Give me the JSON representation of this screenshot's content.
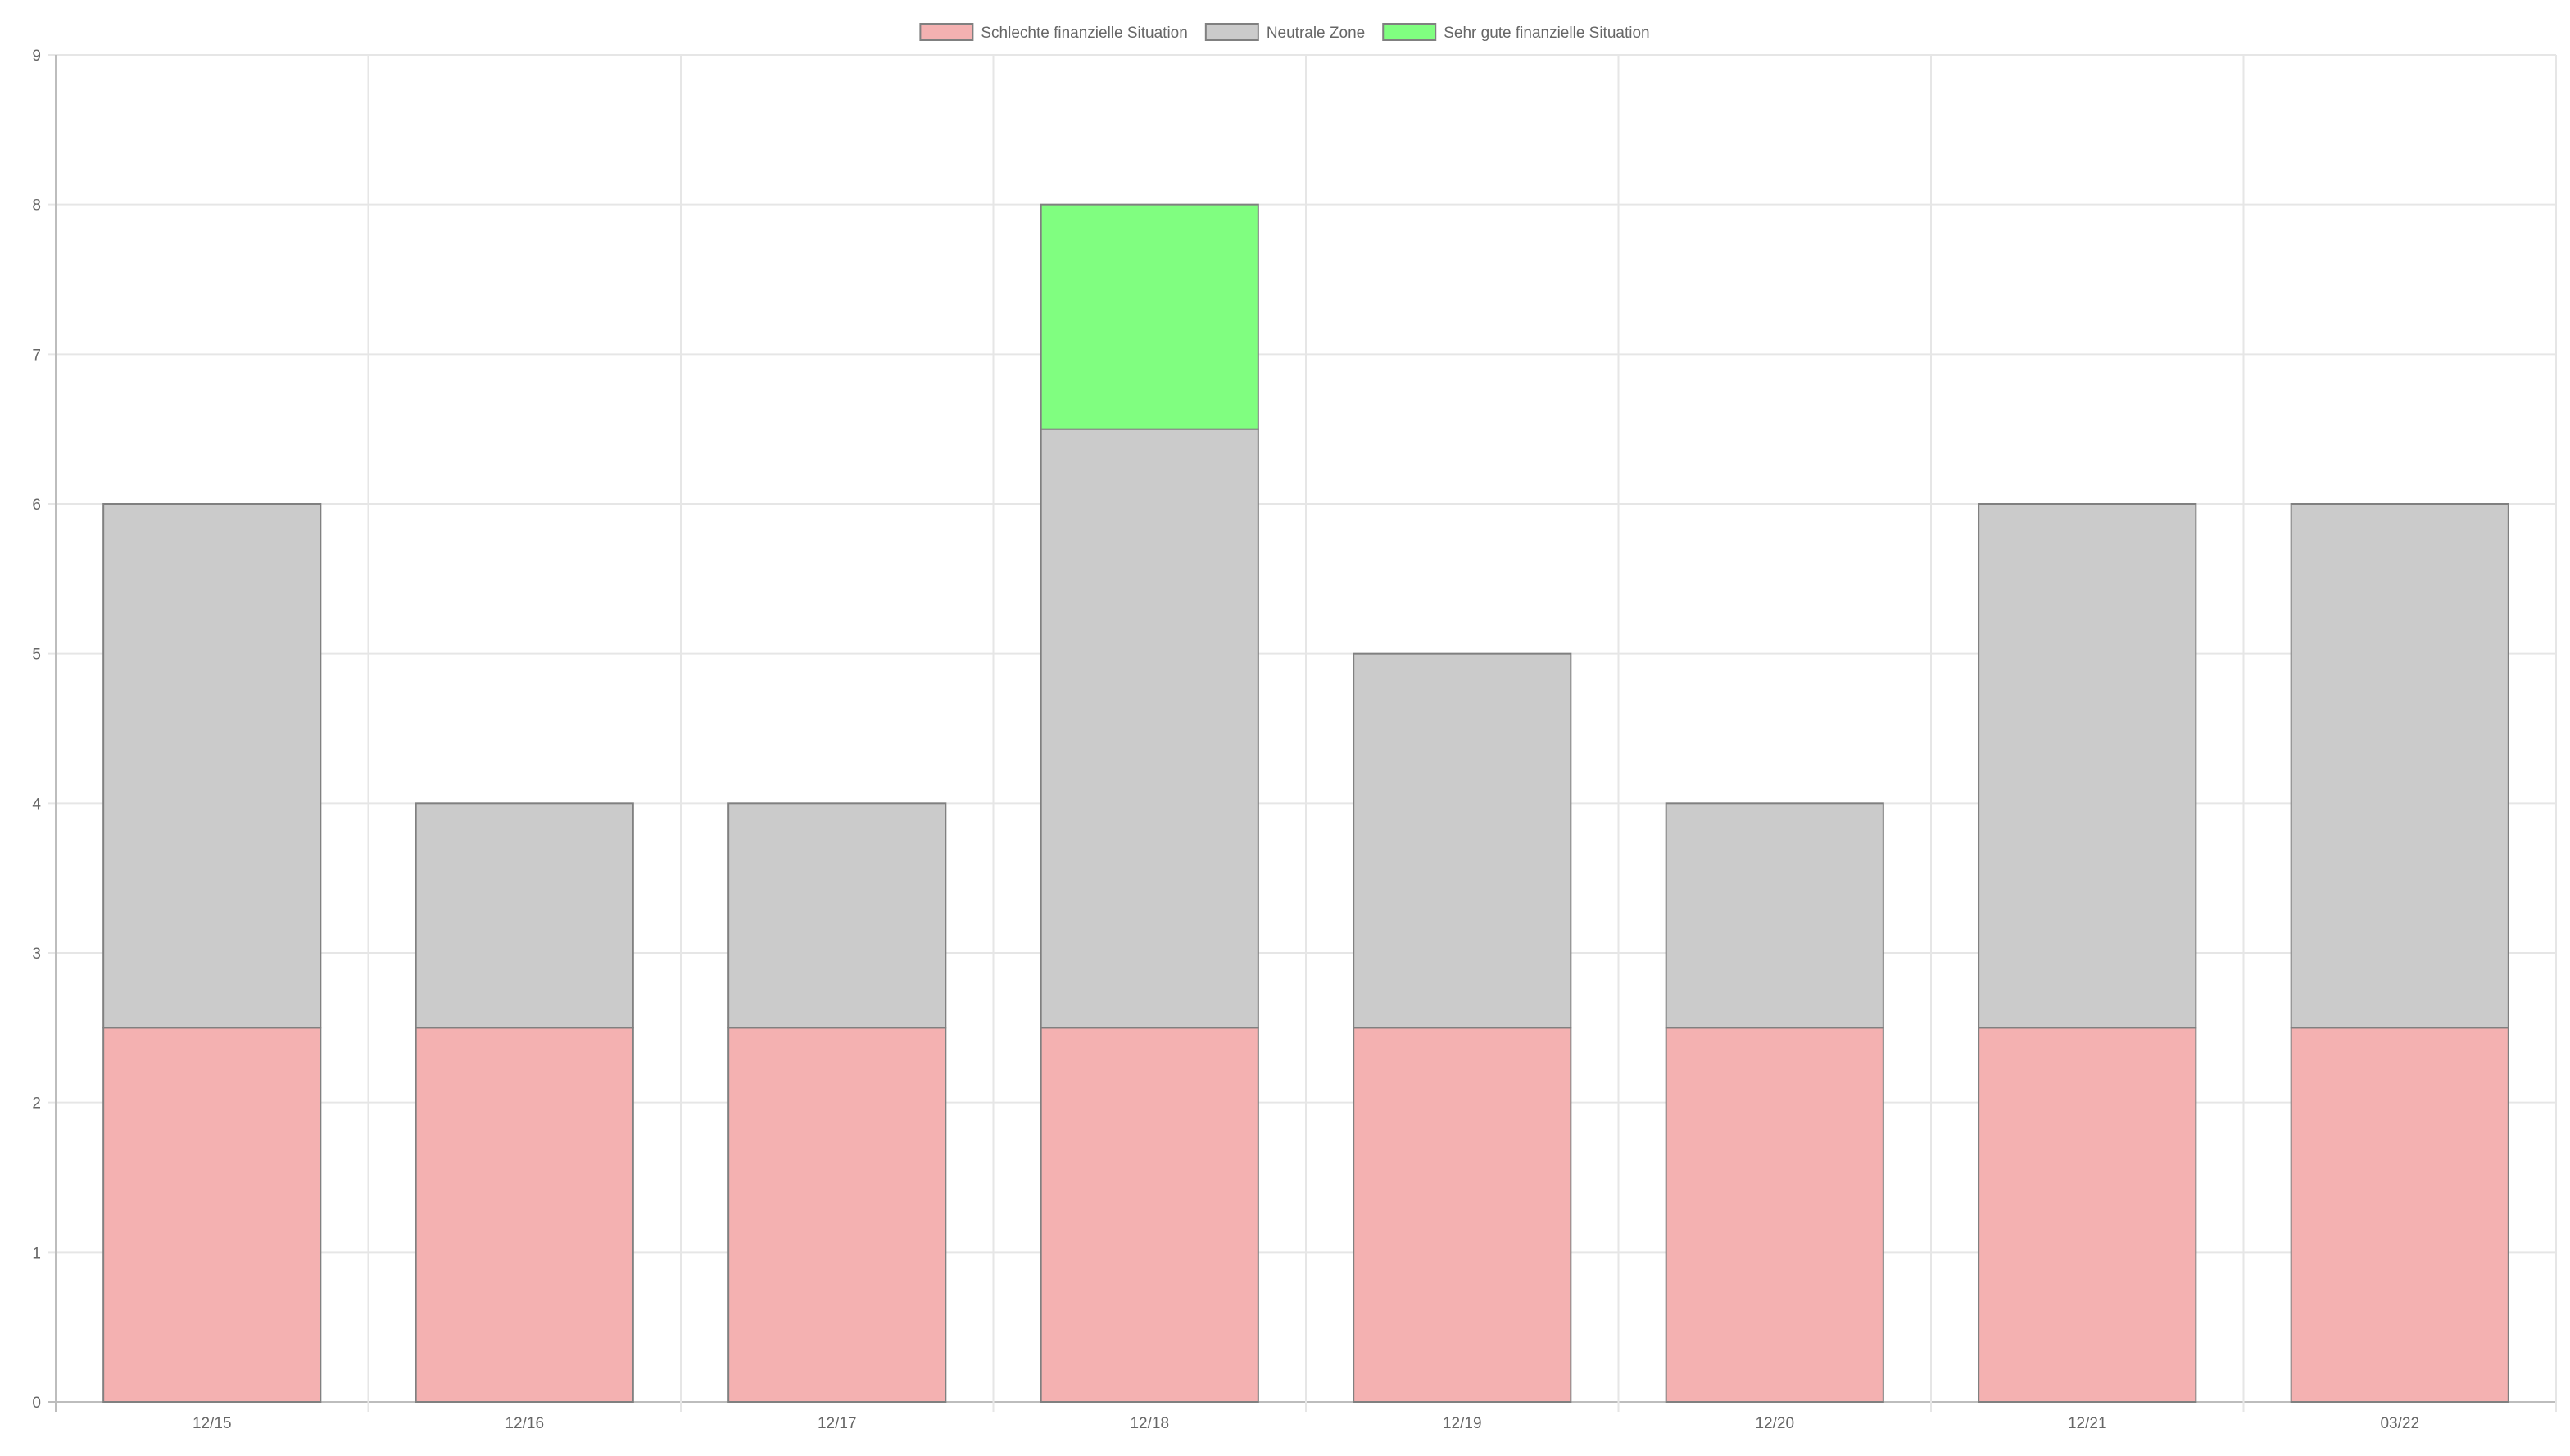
{
  "chart_data": {
    "type": "bar",
    "stacked": true,
    "categories": [
      "12/15",
      "12/16",
      "12/17",
      "12/18",
      "12/19",
      "12/20",
      "12/21",
      "03/22"
    ],
    "series": [
      {
        "name": "Schlechte finanzielle Situation",
        "color": "#f4b1b1",
        "values": [
          2.5,
          2.5,
          2.5,
          2.5,
          2.5,
          2.5,
          2.5,
          2.5
        ]
      },
      {
        "name": "Neutrale Zone",
        "color": "#cbcbcb",
        "values": [
          3.5,
          1.5,
          1.5,
          4,
          2.5,
          1.5,
          3.5,
          3.5
        ]
      },
      {
        "name": "Sehr gute finanzielle Situation",
        "color": "#80fe80",
        "values": [
          0,
          0,
          0,
          1.5,
          0,
          0,
          0,
          0
        ]
      }
    ],
    "title": "",
    "xlabel": "",
    "ylabel": "",
    "ylim": [
      0,
      9
    ],
    "yticks": [
      0,
      1,
      2,
      3,
      4,
      5,
      6,
      7,
      8,
      9
    ],
    "grid": true,
    "legend_position": "top-center",
    "bar_border_color": "#808080",
    "grid_color": "#e6e6e6",
    "axis_color": "#bdbdbd"
  }
}
